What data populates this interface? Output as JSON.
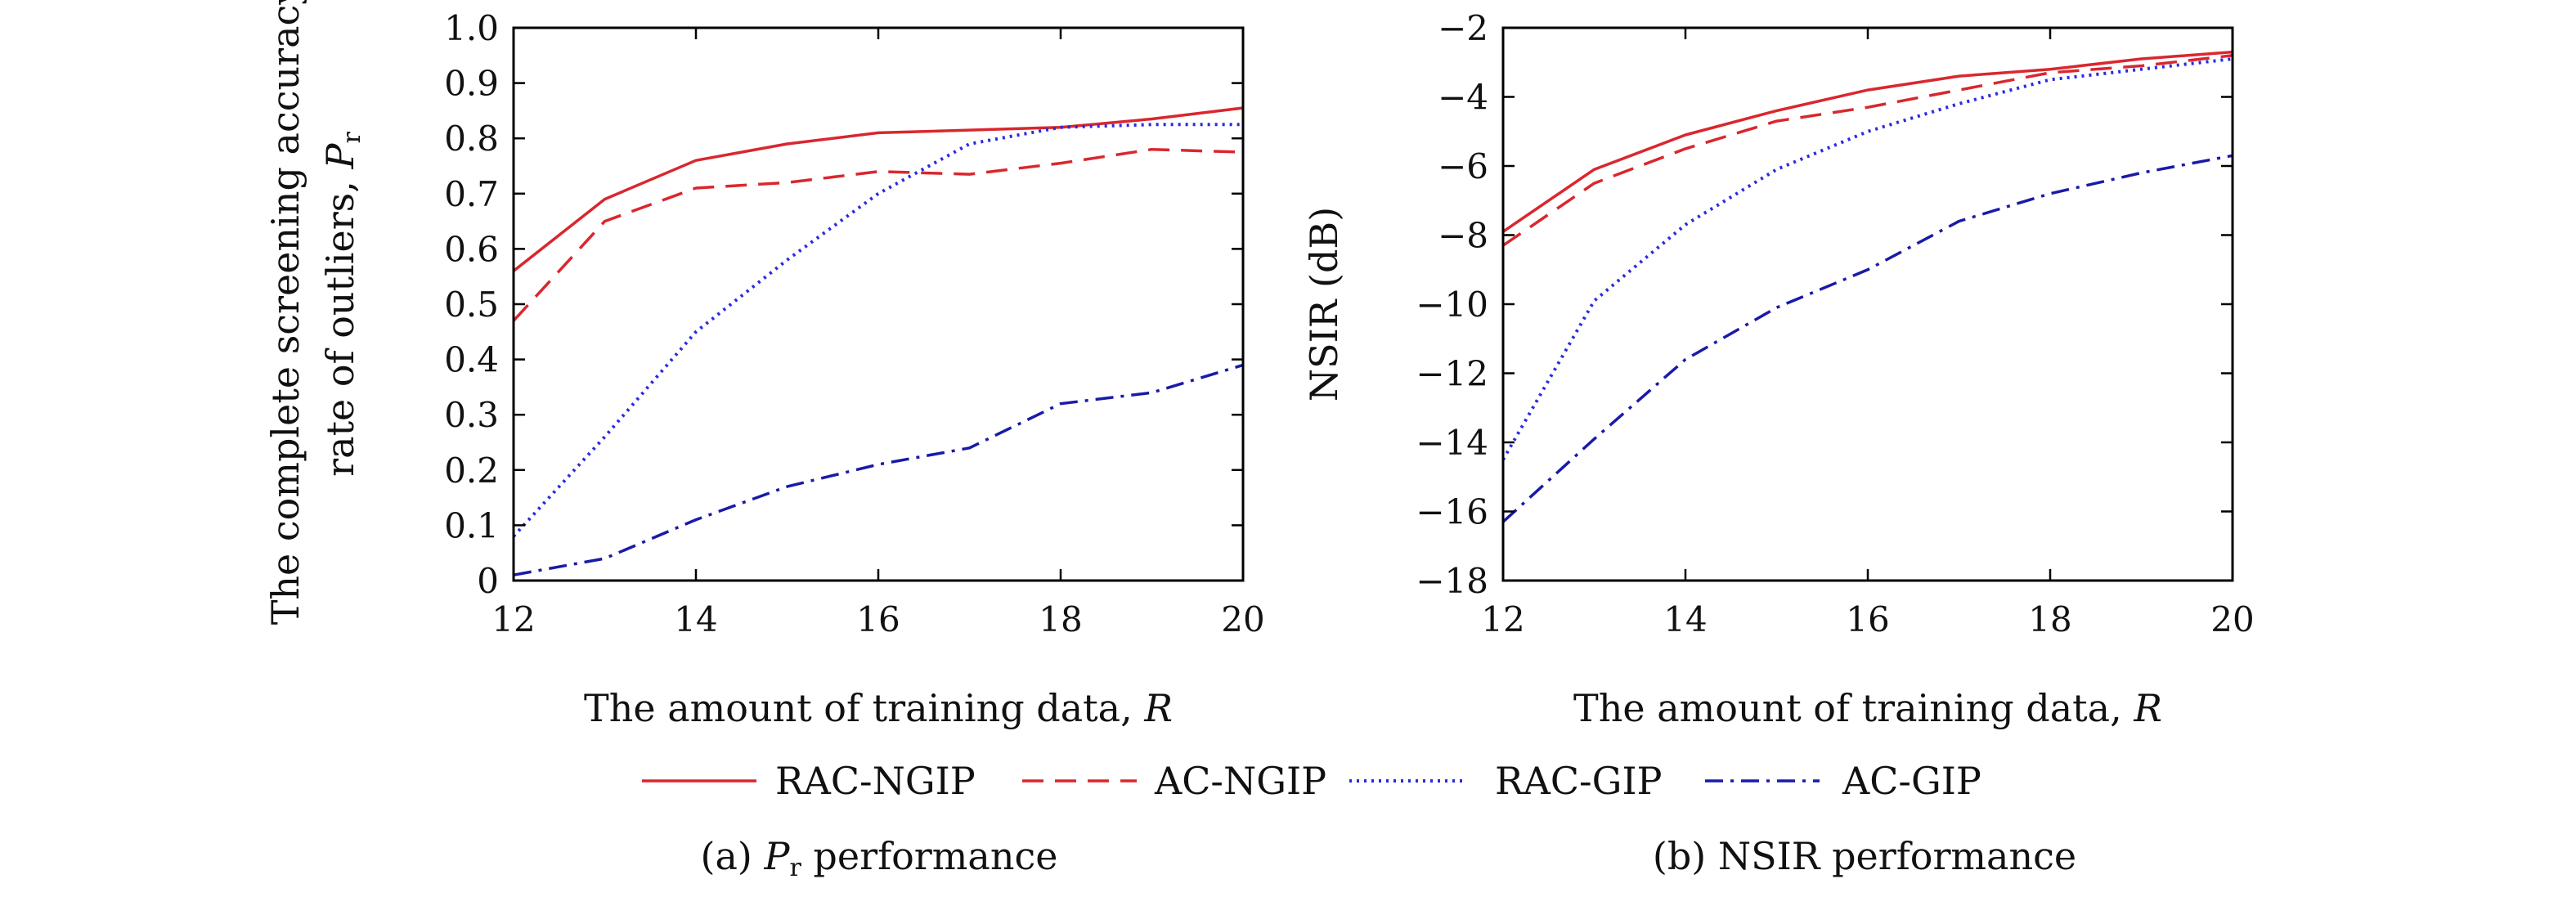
{
  "figure": {
    "legend": [
      {
        "label": "RAC-NGIP",
        "color": "#d9272e",
        "dash": "solid"
      },
      {
        "label": "AC-NGIP",
        "color": "#d9272e",
        "dash": "dashed"
      },
      {
        "label": "RAC-GIP",
        "color": "#2a2ae0",
        "dash": "dotted"
      },
      {
        "label": "AC-GIP",
        "color": "#1a1aa8",
        "dash": "dashdot"
      }
    ]
  },
  "chart_data": [
    {
      "type": "line",
      "caption_prefix": "(a) ",
      "caption_symbol": "P",
      "caption_subscript": "r",
      "caption_suffix": " performance",
      "xlabel": "The amount of training data, ",
      "xlabel_symbol": "R",
      "ylabel_line1": "The complete screening accuracy",
      "ylabel_line2": "rate of outliers, ",
      "ylabel_symbol": "P",
      "ylabel_subscript": "r",
      "xlim": [
        12,
        20
      ],
      "ylim": [
        0,
        1.0
      ],
      "xticks": [
        "12",
        "14",
        "16",
        "18",
        "20"
      ],
      "yticks": [
        "0",
        "0.1",
        "0.2",
        "0.3",
        "0.4",
        "0.5",
        "0.6",
        "0.7",
        "0.8",
        "0.9",
        "1.0"
      ],
      "x": [
        12,
        13,
        14,
        15,
        16,
        17,
        18,
        19,
        20
      ],
      "series": [
        {
          "name": "RAC-NGIP",
          "values": [
            0.56,
            0.69,
            0.76,
            0.79,
            0.81,
            0.815,
            0.82,
            0.835,
            0.855
          ]
        },
        {
          "name": "AC-NGIP",
          "values": [
            0.47,
            0.65,
            0.71,
            0.72,
            0.74,
            0.735,
            0.755,
            0.78,
            0.775
          ]
        },
        {
          "name": "RAC-GIP",
          "values": [
            0.08,
            0.26,
            0.45,
            0.58,
            0.7,
            0.79,
            0.82,
            0.825,
            0.825
          ]
        },
        {
          "name": "AC-GIP",
          "values": [
            0.01,
            0.04,
            0.11,
            0.17,
            0.21,
            0.24,
            0.32,
            0.34,
            0.39
          ]
        }
      ]
    },
    {
      "type": "line",
      "caption_prefix": "(b) ",
      "caption_symbol": "",
      "caption_subscript": "",
      "caption_suffix": "NSIR performance",
      "xlabel": "The amount of training data, ",
      "xlabel_symbol": "R",
      "ylabel_line1": "",
      "ylabel_line2": "NSIR (dB)",
      "ylabel_symbol": "",
      "ylabel_subscript": "",
      "xlim": [
        12,
        20
      ],
      "ylim": [
        -18,
        -2
      ],
      "xticks": [
        "12",
        "14",
        "16",
        "18",
        "20"
      ],
      "yticks": [
        "−18",
        "−16",
        "−14",
        "−12",
        "−10",
        "−8",
        "−6",
        "−4",
        "−2"
      ],
      "x": [
        12,
        13,
        14,
        15,
        16,
        17,
        18,
        19,
        20
      ],
      "series": [
        {
          "name": "RAC-NGIP",
          "values": [
            -7.9,
            -6.1,
            -5.1,
            -4.4,
            -3.8,
            -3.4,
            -3.2,
            -2.9,
            -2.7
          ]
        },
        {
          "name": "AC-NGIP",
          "values": [
            -8.3,
            -6.5,
            -5.5,
            -4.7,
            -4.3,
            -3.8,
            -3.3,
            -3.1,
            -2.8
          ]
        },
        {
          "name": "RAC-GIP",
          "values": [
            -14.5,
            -9.9,
            -7.7,
            -6.1,
            -5.0,
            -4.2,
            -3.5,
            -3.2,
            -2.9
          ]
        },
        {
          "name": "AC-GIP",
          "values": [
            -16.3,
            -13.9,
            -11.6,
            -10.1,
            -9.0,
            -7.6,
            -6.8,
            -6.2,
            -5.7
          ]
        }
      ]
    }
  ]
}
